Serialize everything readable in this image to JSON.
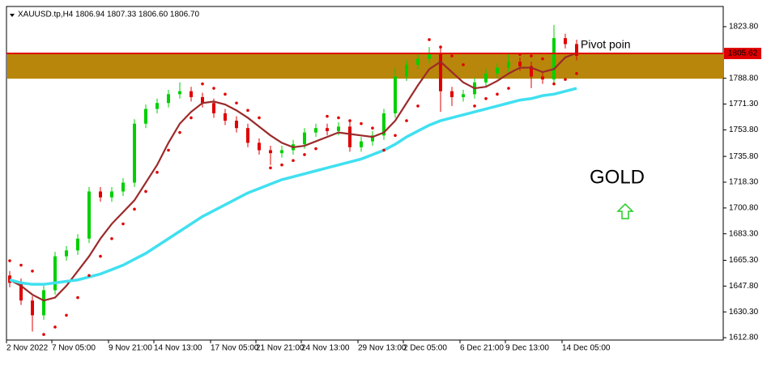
{
  "header": {
    "symbol_info": "XAUUSD.tp,H4  1806.94 1807.33 1806.60 1806.70"
  },
  "chart_data": {
    "type": "candlestick",
    "categories": [
      "2 Nov 2022",
      null,
      null,
      null,
      "7 Nov 05:00",
      null,
      null,
      null,
      null,
      "9 Nov 21:00",
      null,
      null,
      null,
      "14 Nov 13:00",
      null,
      null,
      null,
      null,
      "17 Nov 05:00",
      null,
      null,
      null,
      "21 Nov 21:00",
      null,
      null,
      null,
      "24 Nov 13:00",
      null,
      null,
      null,
      null,
      "29 Nov 13:00",
      null,
      null,
      null,
      "2 Dec 05:00",
      null,
      null,
      null,
      null,
      "6 Dec 21:00",
      null,
      null,
      null,
      "9 Dec 13:00",
      null,
      null,
      null,
      null,
      "14 Dec 05:00",
      null
    ],
    "open": [
      1655,
      1650,
      1638,
      1628,
      1645,
      1668,
      1672,
      1680,
      1712,
      1708,
      1712,
      1718,
      1758,
      1768,
      1772,
      1778,
      1780,
      1776,
      1772,
      1765,
      1760,
      1755,
      1745,
      1740,
      1738,
      1740,
      1744,
      1752,
      1755,
      1753,
      1756,
      1742,
      1746,
      1750,
      1765,
      1790,
      1798,
      1802,
      1806,
      1780,
      1776,
      1778,
      1786,
      1792,
      1796,
      1800,
      1797,
      1790,
      1788,
      1816,
      1812
    ],
    "high": [
      1658,
      1653,
      1641,
      1648,
      1671,
      1675,
      1683,
      1715,
      1715,
      1715,
      1721,
      1761,
      1771,
      1775,
      1781,
      1786,
      1783,
      1779,
      1775,
      1768,
      1763,
      1758,
      1748,
      1743,
      1743,
      1747,
      1755,
      1758,
      1758,
      1759,
      1759,
      1749,
      1753,
      1768,
      1796,
      1801,
      1806,
      1810,
      1809,
      1783,
      1781,
      1789,
      1795,
      1799,
      1805,
      1803,
      1800,
      1793,
      1825,
      1819,
      1815
    ],
    "low": [
      1647,
      1635,
      1617,
      1625,
      1642,
      1665,
      1669,
      1677,
      1705,
      1705,
      1709,
      1715,
      1755,
      1765,
      1769,
      1775,
      1773,
      1769,
      1762,
      1757,
      1752,
      1742,
      1737,
      1730,
      1735,
      1737,
      1741,
      1749,
      1750,
      1750,
      1739,
      1739,
      1743,
      1747,
      1762,
      1787,
      1795,
      1799,
      1766,
      1770,
      1773,
      1775,
      1783,
      1789,
      1793,
      1794,
      1782,
      1785,
      1785,
      1809,
      1801
    ],
    "close": [
      1650,
      1638,
      1628,
      1645,
      1668,
      1672,
      1680,
      1712,
      1708,
      1712,
      1718,
      1758,
      1768,
      1772,
      1778,
      1780,
      1776,
      1772,
      1765,
      1760,
      1755,
      1745,
      1740,
      1738,
      1740,
      1744,
      1752,
      1755,
      1753,
      1756,
      1742,
      1746,
      1750,
      1765,
      1790,
      1798,
      1802,
      1806,
      1780,
      1776,
      1778,
      1786,
      1792,
      1796,
      1800,
      1797,
      1790,
      1788,
      1816,
      1812,
      1804
    ],
    "up_color": "#00d000",
    "down_color": "#e00000",
    "overlays": [
      {
        "color": "#9b2a2a",
        "values": [
          1652,
          1648,
          1642,
          1638,
          1640,
          1648,
          1658,
          1668,
          1680,
          1690,
          1698,
          1706,
          1718,
          1730,
          1745,
          1758,
          1766,
          1772,
          1773,
          1771,
          1767,
          1762,
          1756,
          1750,
          1745,
          1742,
          1743,
          1746,
          1749,
          1752,
          1751,
          1750,
          1749,
          1752,
          1760,
          1772,
          1784,
          1795,
          1800,
          1793,
          1786,
          1782,
          1783,
          1787,
          1792,
          1796,
          1796,
          1793,
          1795,
          1803,
          1806
        ]
      },
      {
        "color": "#40e0f0",
        "values": [
          1652,
          1650,
          1649,
          1649,
          1650,
          1651,
          1652,
          1654,
          1656,
          1659,
          1662,
          1666,
          1670,
          1675,
          1680,
          1685,
          1690,
          1695,
          1699,
          1703,
          1707,
          1711,
          1714,
          1717,
          1720,
          1722,
          1724,
          1726,
          1728,
          1730,
          1732,
          1734,
          1737,
          1740,
          1744,
          1749,
          1753,
          1757,
          1760,
          1762,
          1764,
          1766,
          1768,
          1770,
          1772,
          1774,
          1775,
          1777,
          1778,
          1780,
          1782
        ]
      }
    ],
    "sar": {
      "color": "#e00000",
      "values": [
        1665,
        1662,
        1658,
        1615,
        1620,
        1628,
        1640,
        1655,
        1668,
        1680,
        1690,
        1700,
        1712,
        1725,
        1740,
        1752,
        1762,
        1785,
        1782,
        1778,
        1772,
        1767,
        1762,
        1728,
        1730,
        1733,
        1737,
        1741,
        1763,
        1762,
        1760,
        1758,
        1755,
        1740,
        1750,
        1760,
        1770,
        1815,
        1810,
        1804,
        1798,
        1770,
        1775,
        1778,
        1782,
        1805,
        1804,
        1802,
        1785,
        1788,
        1792
      ]
    },
    "zone": {
      "from": 1788.5,
      "to": 1805.62,
      "color": "#b8860b"
    },
    "current_price": {
      "value": 1805.62,
      "label": "1805.62"
    },
    "ylim": [
      1611.2,
      1837.5
    ],
    "yticks": [
      {
        "value": 1823.8,
        "label": "1823.80"
      },
      {
        "value": 1788.8,
        "label": "1788.80"
      },
      {
        "value": 1771.3,
        "label": "1771.30"
      },
      {
        "value": 1753.8,
        "label": "1753.80"
      },
      {
        "value": 1735.8,
        "label": "1735.80"
      },
      {
        "value": 1718.3,
        "label": "1718.30"
      },
      {
        "value": 1700.8,
        "label": "1700.80"
      },
      {
        "value": 1683.3,
        "label": "1683.30"
      },
      {
        "value": 1665.3,
        "label": "1665.30"
      },
      {
        "value": 1647.8,
        "label": "1647.80"
      },
      {
        "value": 1630.3,
        "label": "1630.30"
      },
      {
        "value": 1612.8,
        "label": "1612.80"
      }
    ],
    "annotations": [
      {
        "text": "Pivot poin"
      },
      {
        "text": "GOLD"
      }
    ]
  }
}
